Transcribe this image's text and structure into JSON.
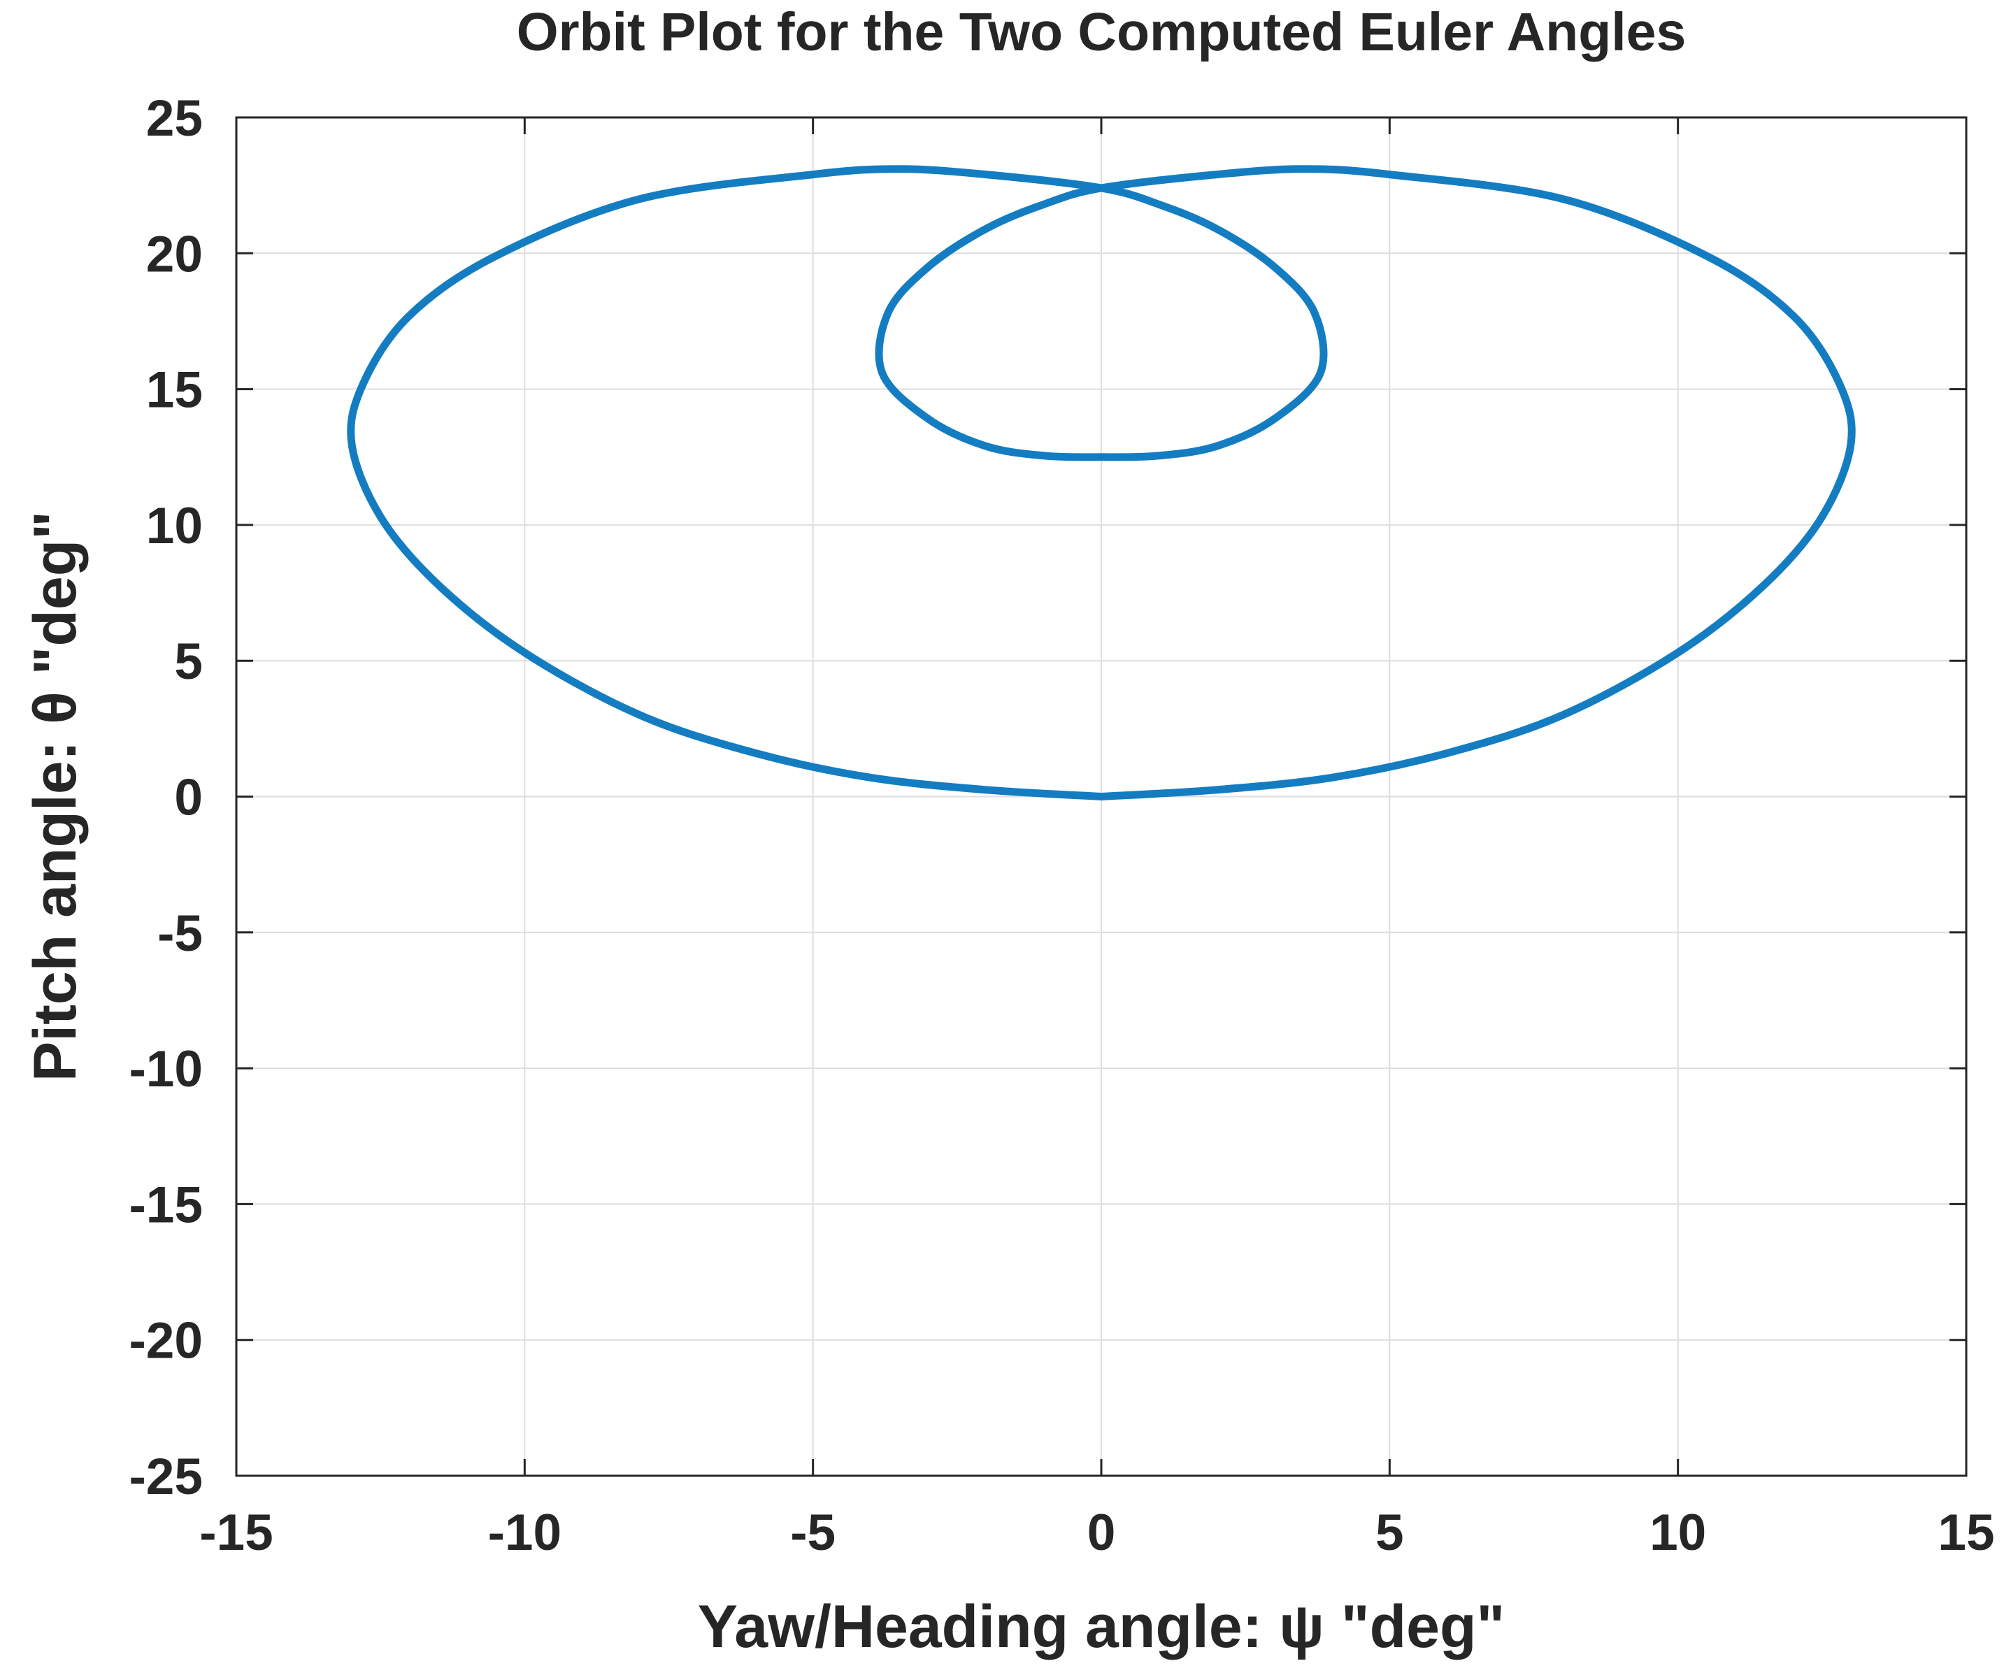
{
  "chart_data": {
    "type": "line",
    "title": "Orbit Plot for the Two Computed Euler Angles",
    "xlabel": "Yaw/Heading angle: ψ \"deg\"",
    "ylabel": "Pitch angle: θ \"deg\"",
    "xlim": [
      -15,
      15
    ],
    "ylim": [
      -25,
      25
    ],
    "xticks": [
      -15,
      -10,
      -5,
      0,
      5,
      10,
      15
    ],
    "yticks": [
      -25,
      -20,
      -15,
      -10,
      -5,
      0,
      5,
      10,
      15,
      20,
      25
    ],
    "xtick_labels": [
      "-15",
      "-10",
      "-5",
      "0",
      "5",
      "10",
      "15"
    ],
    "ytick_labels": [
      "-25",
      "-20",
      "-15",
      "-10",
      "-5",
      "0",
      "5",
      "10",
      "15",
      "20",
      "25"
    ],
    "grid": true,
    "series": [
      {
        "color": "#0072BD",
        "x": [
          0.0,
          2.0,
          4.0,
          6.0,
          8.0,
          10.0,
          11.5,
          12.5,
          13.0,
          12.8,
          12.0,
          10.5,
          8.0,
          5.0,
          3.5,
          2.0,
          0.0,
          -1.0,
          -2.0,
          -3.0,
          -3.7,
          -3.8,
          -3.0,
          -2.0,
          -1.0,
          0.0,
          1.0,
          2.0,
          3.0,
          3.8,
          3.7,
          3.0,
          2.0,
          1.0,
          0.0,
          -2.0,
          -3.5,
          -5.0,
          -8.0,
          -10.5,
          -12.0,
          -12.8,
          -13.0,
          -12.5,
          -11.5,
          -10.0,
          -8.0,
          -6.0,
          -4.0,
          -2.0,
          0.0
        ],
        "y": [
          0.0,
          0.25,
          0.7,
          1.6,
          3.0,
          5.3,
          7.8,
          10.3,
          13.0,
          15.2,
          17.7,
          19.9,
          22.0,
          22.9,
          23.1,
          22.9,
          22.4,
          21.8,
          20.9,
          19.5,
          17.8,
          15.6,
          13.9,
          12.9,
          12.55,
          12.5,
          12.55,
          12.9,
          13.9,
          15.6,
          17.8,
          19.5,
          20.9,
          21.8,
          22.4,
          22.9,
          23.1,
          22.9,
          22.0,
          19.9,
          17.7,
          15.2,
          13.0,
          10.3,
          7.8,
          5.3,
          3.0,
          1.6,
          0.7,
          0.25,
          0.0
        ]
      }
    ]
  }
}
